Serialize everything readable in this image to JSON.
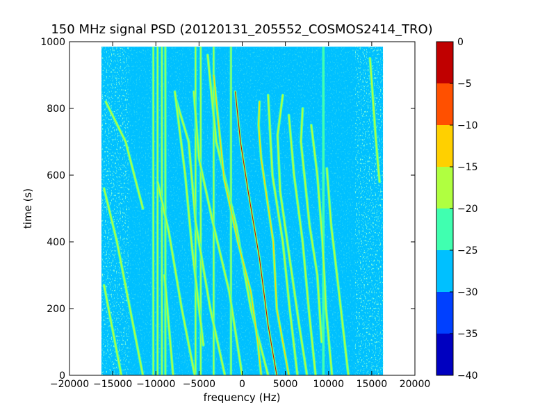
{
  "chart_data": {
    "type": "heatmap",
    "title": "150 MHz signal PSD (20120131_205552_COSMOS2414_TRO)",
    "xlabel": "frequency (Hz)",
    "ylabel": "time (s)",
    "xlim": [
      -20000,
      20000
    ],
    "ylim": [
      0,
      1000
    ],
    "xticks": [
      -20000,
      -15000,
      -10000,
      -5000,
      0,
      5000,
      10000,
      15000,
      20000
    ],
    "xtick_labels": [
      "−20000",
      "−15000",
      "−10000",
      "−5000",
      "0",
      "5000",
      "10000",
      "15000",
      "20000"
    ],
    "yticks": [
      0,
      200,
      400,
      600,
      800,
      1000
    ],
    "ytick_labels": [
      "0",
      "200",
      "400",
      "600",
      "800",
      "1000"
    ],
    "data_extent": {
      "x": [
        -16300,
        16300
      ],
      "y": [
        0,
        985
      ]
    },
    "colorbar": {
      "levels": [
        -40,
        -35,
        -30,
        -25,
        -20,
        -15,
        -10,
        -5,
        0
      ],
      "tick_labels": [
        "−40",
        "−35",
        "−30",
        "−25",
        "−20",
        "−15",
        "−10",
        "−5",
        "0"
      ],
      "colors": [
        "#0000c0",
        "#0040ff",
        "#00c0ff",
        "#40ffb0",
        "#b0ff40",
        "#ffd000",
        "#ff5000",
        "#c00000"
      ]
    },
    "background_level": -27,
    "edge_bands_level": -22,
    "vertical_lines": [
      {
        "x": -10300,
        "level": -18
      },
      {
        "x": -9800,
        "level": -16
      },
      {
        "x": -9300,
        "level": -20
      },
      {
        "x": -8900,
        "level": -18
      },
      {
        "x": -5400,
        "level": -18
      },
      {
        "x": -4800,
        "level": -20
      },
      {
        "x": -3300,
        "level": -18
      },
      {
        "x": -1300,
        "level": -20
      },
      {
        "x": 9400,
        "level": -22
      }
    ],
    "drifting_traces": [
      {
        "points": [
          [
            -14000,
            0
          ],
          [
            -16000,
            270
          ]
        ],
        "level": -20
      },
      {
        "points": [
          [
            -11500,
            0
          ],
          [
            -13000,
            200
          ],
          [
            -14500,
            400
          ],
          [
            -16000,
            560
          ]
        ],
        "level": -18
      },
      {
        "points": [
          [
            -11500,
            500
          ],
          [
            -13500,
            700
          ],
          [
            -15800,
            820
          ]
        ],
        "level": -20
      },
      {
        "points": [
          [
            -8000,
            0
          ],
          [
            -9000,
            300
          ]
        ],
        "level": -20
      },
      {
        "points": [
          [
            -5500,
            0
          ],
          [
            -7000,
            200
          ],
          [
            -8500,
            430
          ],
          [
            -9800,
            580
          ]
        ],
        "level": -20
      },
      {
        "points": [
          [
            -2000,
            0
          ],
          [
            -3700,
            200
          ],
          [
            -5400,
            460
          ],
          [
            -6200,
            700
          ],
          [
            -7700,
            830
          ]
        ],
        "level": -18
      },
      {
        "points": [
          [
            0,
            0
          ],
          [
            -1500,
            250
          ],
          [
            -3500,
            470
          ],
          [
            -5000,
            650
          ],
          [
            -5600,
            850
          ]
        ],
        "level": -17
      },
      {
        "points": [
          [
            -4500,
            90
          ],
          [
            -5800,
            380
          ],
          [
            -6600,
            600
          ],
          [
            -7800,
            850
          ]
        ],
        "level": -20
      },
      {
        "points": [
          [
            3000,
            0
          ],
          [
            1000,
            200
          ],
          [
            -700,
            450
          ],
          [
            -3000,
            700
          ],
          [
            -4000,
            960
          ]
        ],
        "level": -18
      },
      {
        "points": [
          [
            2200,
            0
          ],
          [
            1800,
            100
          ],
          [
            1000,
            250
          ],
          [
            -500,
            400
          ],
          [
            -2100,
            590
          ],
          [
            -2800,
            770
          ],
          [
            -3300,
            900
          ]
        ],
        "level": -15
      },
      {
        "points": [
          [
            4000,
            0
          ],
          [
            3000,
            150
          ],
          [
            2000,
            350
          ],
          [
            700,
            550
          ],
          [
            -200,
            700
          ],
          [
            -800,
            850
          ]
        ],
        "level": -5
      },
      {
        "points": [
          [
            5400,
            0
          ],
          [
            4000,
            200
          ],
          [
            3600,
            400
          ],
          [
            2200,
            650
          ],
          [
            1900,
            750
          ],
          [
            2000,
            820
          ]
        ],
        "level": -15
      },
      {
        "points": [
          [
            6400,
            0
          ],
          [
            5500,
            200
          ],
          [
            4700,
            400
          ],
          [
            3500,
            600
          ],
          [
            3000,
            840
          ]
        ],
        "level": -16
      },
      {
        "points": [
          [
            7500,
            0
          ],
          [
            6600,
            150
          ],
          [
            5500,
            350
          ],
          [
            4400,
            550
          ],
          [
            4100,
            720
          ],
          [
            4700,
            840
          ]
        ],
        "level": -18
      },
      {
        "points": [
          [
            8500,
            0
          ],
          [
            7700,
            200
          ],
          [
            7000,
            400
          ],
          [
            6000,
            600
          ],
          [
            5400,
            780
          ]
        ],
        "level": -20
      },
      {
        "points": [
          [
            9200,
            100
          ],
          [
            8700,
            300
          ],
          [
            7800,
            450
          ],
          [
            6800,
            700
          ],
          [
            7000,
            800
          ]
        ],
        "level": -16
      },
      {
        "points": [
          [
            10400,
            0
          ],
          [
            9700,
            200
          ],
          [
            9300,
            400
          ],
          [
            8700,
            600
          ],
          [
            8000,
            750
          ]
        ],
        "level": -20
      },
      {
        "points": [
          [
            12300,
            0
          ],
          [
            11200,
            250
          ],
          [
            10300,
            450
          ],
          [
            9800,
            620
          ]
        ],
        "level": -20
      },
      {
        "points": [
          [
            15900,
            580
          ],
          [
            15500,
            700
          ],
          [
            14800,
            950
          ]
        ],
        "level": -18
      }
    ]
  }
}
